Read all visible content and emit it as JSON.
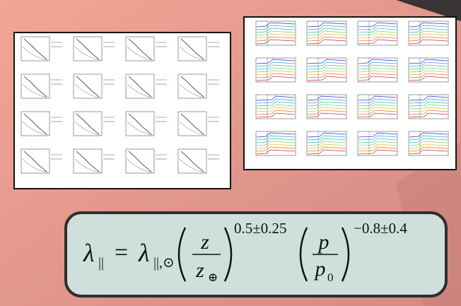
{
  "formula": {
    "lhs_symbol": "λ",
    "lhs_sub": "||",
    "equals": "=",
    "rhs_symbol": "λ",
    "rhs_sub": "||,⊙",
    "z_num": "z",
    "z_den": "z",
    "z_den_sub": "⊕",
    "z_exp": "0.5±0.25",
    "p_num": "p",
    "p_den": "p",
    "p_den_sub": "0",
    "p_exp": "−0.8±0.4"
  }
}
